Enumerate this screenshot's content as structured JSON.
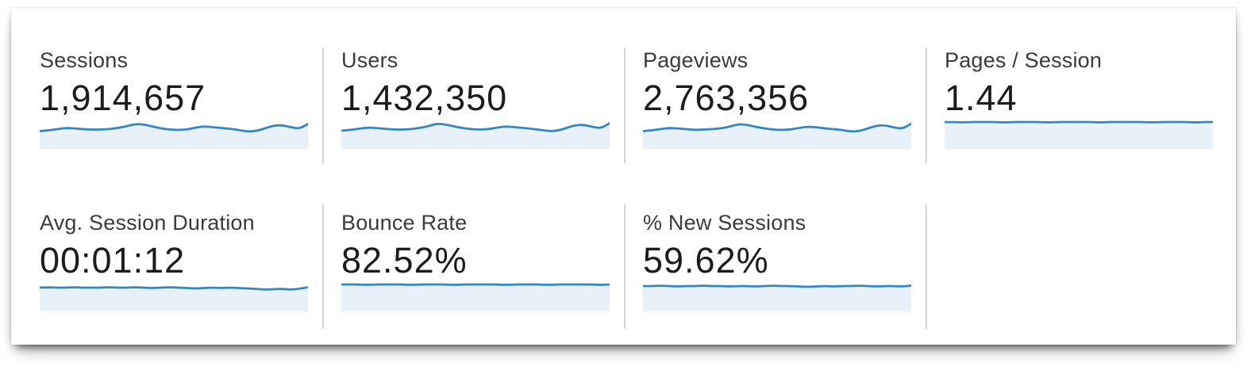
{
  "dashboard": {
    "colors": {
      "sparkline_stroke": "#3786c0",
      "sparkline_fill": "#e8f1f9",
      "divider": "#d5d5d5",
      "label_text": "#3b3b3b",
      "value_text": "#1c1c1c"
    },
    "metrics": [
      {
        "label": "Sessions",
        "value": "1,914,657",
        "sparkline": [
          15.5,
          14.5,
          13,
          11.5,
          12,
          13,
          13.5,
          13.5,
          13,
          11.5,
          9.5,
          6.5,
          7,
          9.5,
          12,
          13.5,
          14,
          13.5,
          11,
          9.5,
          10.5,
          11.5,
          12.5,
          14,
          16,
          15.5,
          12,
          8.5,
          8,
          10.5,
          12.5,
          6.5
        ]
      },
      {
        "label": "Users",
        "value": "1,432,350",
        "sparkline": [
          15,
          14,
          12.5,
          11,
          11.5,
          12.5,
          13.5,
          13.5,
          13,
          11.5,
          9.5,
          6,
          7,
          9.5,
          11.5,
          13,
          13.5,
          13,
          11,
          9.5,
          10.5,
          11.5,
          12.5,
          14,
          15.5,
          15,
          11.5,
          8,
          7.5,
          10,
          12,
          5.5
        ]
      },
      {
        "label": "Pageviews",
        "value": "2,763,356",
        "sparkline": [
          15.5,
          14.5,
          13,
          11.5,
          12,
          13,
          14,
          13.5,
          13,
          12,
          10,
          6.5,
          7.5,
          10,
          12,
          13.5,
          14,
          13.5,
          11.5,
          10,
          10.5,
          12,
          13,
          14,
          16,
          15.5,
          12,
          8.5,
          8,
          11,
          12.5,
          6
        ]
      },
      {
        "label": "Pages / Session",
        "value": "1.44",
        "sparkline": [
          4,
          4,
          4.5,
          4,
          4,
          4,
          4,
          4.5,
          4,
          4,
          4,
          4,
          4.5,
          4,
          4,
          4,
          4,
          4,
          4.5,
          4,
          4,
          4,
          4,
          4,
          4.5,
          4,
          4,
          4,
          4,
          4.5,
          4,
          4
        ]
      },
      {
        "label": "Avg. Session Duration",
        "value": "00:01:12",
        "sparkline": [
          8,
          7.5,
          8,
          8,
          7.5,
          8,
          8,
          8,
          7.5,
          8,
          8,
          7.5,
          8,
          8.5,
          8,
          7.5,
          8,
          8.5,
          9,
          8.5,
          8,
          8.5,
          8,
          8.5,
          9,
          9.5,
          10.5,
          10,
          9.5,
          10.5,
          9.5,
          7.5
        ]
      },
      {
        "label": "Bounce Rate",
        "value": "82.52%",
        "sparkline": [
          4,
          4,
          4,
          4.5,
          4,
          4,
          4,
          4,
          4.5,
          4,
          4,
          4,
          4,
          4.5,
          4,
          4,
          4,
          4,
          4,
          4.5,
          4,
          4,
          4,
          4,
          4.5,
          4,
          4,
          4,
          4,
          4,
          4.5,
          4
        ]
      },
      {
        "label": "% New Sessions",
        "value": "59.62%",
        "sparkline": [
          6,
          6,
          5.5,
          6,
          6.5,
          6,
          6,
          5.5,
          6,
          6,
          6.5,
          6,
          6,
          6.5,
          6,
          5.5,
          6,
          6,
          6.5,
          7,
          6.5,
          6,
          6.5,
          6,
          6,
          5.5,
          6,
          6.5,
          6,
          6,
          6.5,
          5.5
        ]
      }
    ]
  }
}
